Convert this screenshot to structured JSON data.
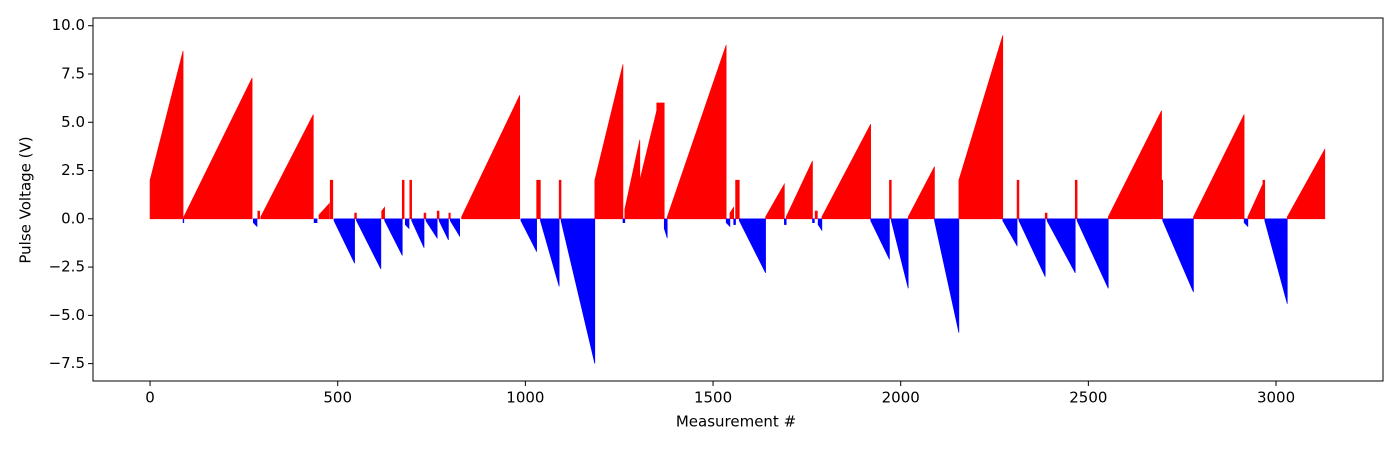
{
  "chart_data": {
    "type": "sawtooth",
    "x_label": "Measurement #",
    "y_label": "Pulse Voltage (V)",
    "positive_color": "#ff0000",
    "negative_color": "#0000ff",
    "xlim": [
      -152,
      3285
    ],
    "ylim": [
      -8.4,
      10.4
    ],
    "xticks": [
      0,
      500,
      1000,
      1500,
      2000,
      2500,
      3000
    ],
    "yticks": [
      {
        "value": 10,
        "label": "10.0"
      },
      {
        "value": 7.5,
        "label": "7.5"
      },
      {
        "value": 5,
        "label": "5.0"
      },
      {
        "value": 2.5,
        "label": "2.5"
      },
      {
        "value": 0,
        "label": "0.0"
      },
      {
        "value": -2.5,
        "label": "−2.5"
      },
      {
        "value": -5,
        "label": "−5.0"
      },
      {
        "value": -7.5,
        "label": "−7.5"
      }
    ],
    "segments": [
      {
        "x0": 0,
        "x1": 88,
        "v0": 2.0,
        "v1": 8.7
      },
      {
        "x0": 88,
        "x1": 90,
        "v0": -0.2,
        "v1": -0.2
      },
      {
        "x0": 90,
        "x1": 272,
        "v0": 0.1,
        "v1": 7.3
      },
      {
        "x0": 275,
        "x1": 285,
        "v0": -0.2,
        "v1": -0.4
      },
      {
        "x0": 287,
        "x1": 292,
        "v0": 0.4,
        "v1": 0.4
      },
      {
        "x0": 295,
        "x1": 435,
        "v0": 0.1,
        "v1": 5.4
      },
      {
        "x0": 437,
        "x1": 445,
        "v0": -0.2,
        "v1": -0.2
      },
      {
        "x0": 450,
        "x1": 478,
        "v0": 0.2,
        "v1": 0.8
      },
      {
        "x0": 480,
        "x1": 487,
        "v0": 2.0,
        "v1": 2.0
      },
      {
        "x0": 490,
        "x1": 545,
        "v0": -0.1,
        "v1": -2.3
      },
      {
        "x0": 545,
        "x1": 550,
        "v0": 0.3,
        "v1": 0.3
      },
      {
        "x0": 550,
        "x1": 615,
        "v0": -0.1,
        "v1": -2.6
      },
      {
        "x0": 617,
        "x1": 625,
        "v0": 0.4,
        "v1": 0.6
      },
      {
        "x0": 625,
        "x1": 672,
        "v0": -0.1,
        "v1": -1.9
      },
      {
        "x0": 672,
        "x1": 677,
        "v0": 2.0,
        "v1": 2.0
      },
      {
        "x0": 680,
        "x1": 690,
        "v0": -0.3,
        "v1": -0.5
      },
      {
        "x0": 692,
        "x1": 697,
        "v0": 2.0,
        "v1": 2.0
      },
      {
        "x0": 697,
        "x1": 730,
        "v0": -0.1,
        "v1": -1.5
      },
      {
        "x0": 730,
        "x1": 735,
        "v0": 0.3,
        "v1": 0.3
      },
      {
        "x0": 735,
        "x1": 765,
        "v0": -0.1,
        "v1": -1.0
      },
      {
        "x0": 765,
        "x1": 770,
        "v0": 0.4,
        "v1": 0.4
      },
      {
        "x0": 770,
        "x1": 795,
        "v0": -0.1,
        "v1": -1.1
      },
      {
        "x0": 796,
        "x1": 800,
        "v0": 0.3,
        "v1": 0.3
      },
      {
        "x0": 800,
        "x1": 825,
        "v0": -0.1,
        "v1": -0.9
      },
      {
        "x0": 830,
        "x1": 985,
        "v0": 0.1,
        "v1": 6.4
      },
      {
        "x0": 988,
        "x1": 1030,
        "v0": -0.1,
        "v1": -1.7
      },
      {
        "x0": 1030,
        "x1": 1040,
        "v0": 2.0,
        "v1": 2.0
      },
      {
        "x0": 1040,
        "x1": 1090,
        "v0": -0.1,
        "v1": -3.5
      },
      {
        "x0": 1090,
        "x1": 1095,
        "v0": 2.0,
        "v1": 2.0
      },
      {
        "x0": 1095,
        "x1": 1185,
        "v0": -0.1,
        "v1": -7.5
      },
      {
        "x0": 1185,
        "x1": 1260,
        "v0": 2.0,
        "v1": 8.0
      },
      {
        "x0": 1260,
        "x1": 1265,
        "v0": -0.2,
        "v1": -0.2
      },
      {
        "x0": 1265,
        "x1": 1305,
        "v0": 0.5,
        "v1": 4.1
      },
      {
        "x0": 1305,
        "x1": 1350,
        "v0": 2.0,
        "v1": 5.6
      },
      {
        "x0": 1350,
        "x1": 1370,
        "v0": 6.0,
        "v1": 6.0
      },
      {
        "x0": 1370,
        "x1": 1378,
        "v0": -0.5,
        "v1": -1.0
      },
      {
        "x0": 1378,
        "x1": 1535,
        "v0": 0.1,
        "v1": 9.0
      },
      {
        "x0": 1535,
        "x1": 1545,
        "v0": -0.2,
        "v1": -0.4
      },
      {
        "x0": 1545,
        "x1": 1555,
        "v0": 0.3,
        "v1": 0.6
      },
      {
        "x0": 1555,
        "x1": 1560,
        "v0": -0.3,
        "v1": -0.3
      },
      {
        "x0": 1560,
        "x1": 1570,
        "v0": 2.0,
        "v1": 2.0
      },
      {
        "x0": 1570,
        "x1": 1640,
        "v0": -0.1,
        "v1": -2.8
      },
      {
        "x0": 1640,
        "x1": 1690,
        "v0": 0.1,
        "v1": 1.8
      },
      {
        "x0": 1690,
        "x1": 1695,
        "v0": -0.3,
        "v1": -0.3
      },
      {
        "x0": 1695,
        "x1": 1765,
        "v0": 0.1,
        "v1": 3.0
      },
      {
        "x0": 1765,
        "x1": 1770,
        "v0": -0.2,
        "v1": -0.2
      },
      {
        "x0": 1772,
        "x1": 1778,
        "v0": 0.4,
        "v1": 0.4
      },
      {
        "x0": 1780,
        "x1": 1790,
        "v0": -0.3,
        "v1": -0.6
      },
      {
        "x0": 1790,
        "x1": 1920,
        "v0": 0.1,
        "v1": 4.9
      },
      {
        "x0": 1920,
        "x1": 1970,
        "v0": -0.1,
        "v1": -2.1
      },
      {
        "x0": 1970,
        "x1": 1975,
        "v0": 2.0,
        "v1": 2.0
      },
      {
        "x0": 1975,
        "x1": 2020,
        "v0": -0.1,
        "v1": -3.6
      },
      {
        "x0": 2020,
        "x1": 2090,
        "v0": 0.1,
        "v1": 2.7
      },
      {
        "x0": 2090,
        "x1": 2155,
        "v0": -0.1,
        "v1": -5.9
      },
      {
        "x0": 2155,
        "x1": 2272,
        "v0": 2.0,
        "v1": 9.5
      },
      {
        "x0": 2272,
        "x1": 2310,
        "v0": -0.1,
        "v1": -1.4
      },
      {
        "x0": 2310,
        "x1": 2315,
        "v0": 2.0,
        "v1": 2.0
      },
      {
        "x0": 2315,
        "x1": 2385,
        "v0": -0.1,
        "v1": -3.0
      },
      {
        "x0": 2385,
        "x1": 2390,
        "v0": 0.3,
        "v1": 0.3
      },
      {
        "x0": 2390,
        "x1": 2465,
        "v0": -0.1,
        "v1": -2.8
      },
      {
        "x0": 2465,
        "x1": 2470,
        "v0": 2.0,
        "v1": 2.0
      },
      {
        "x0": 2470,
        "x1": 2553,
        "v0": -0.1,
        "v1": -3.6
      },
      {
        "x0": 2553,
        "x1": 2695,
        "v0": 0.1,
        "v1": 5.6
      },
      {
        "x0": 2695,
        "x1": 2698,
        "v0": 2.0,
        "v1": 2.0
      },
      {
        "x0": 2698,
        "x1": 2780,
        "v0": -0.1,
        "v1": -3.8
      },
      {
        "x0": 2780,
        "x1": 2915,
        "v0": 0.1,
        "v1": 5.4
      },
      {
        "x0": 2915,
        "x1": 2925,
        "v0": -0.2,
        "v1": -0.4
      },
      {
        "x0": 2925,
        "x1": 2965,
        "v0": 0.1,
        "v1": 1.8
      },
      {
        "x0": 2965,
        "x1": 2970,
        "v0": 2.0,
        "v1": 2.0
      },
      {
        "x0": 2970,
        "x1": 3030,
        "v0": -0.1,
        "v1": -4.4
      },
      {
        "x0": 3030,
        "x1": 3130,
        "v0": 0.1,
        "v1": 3.6
      }
    ]
  }
}
